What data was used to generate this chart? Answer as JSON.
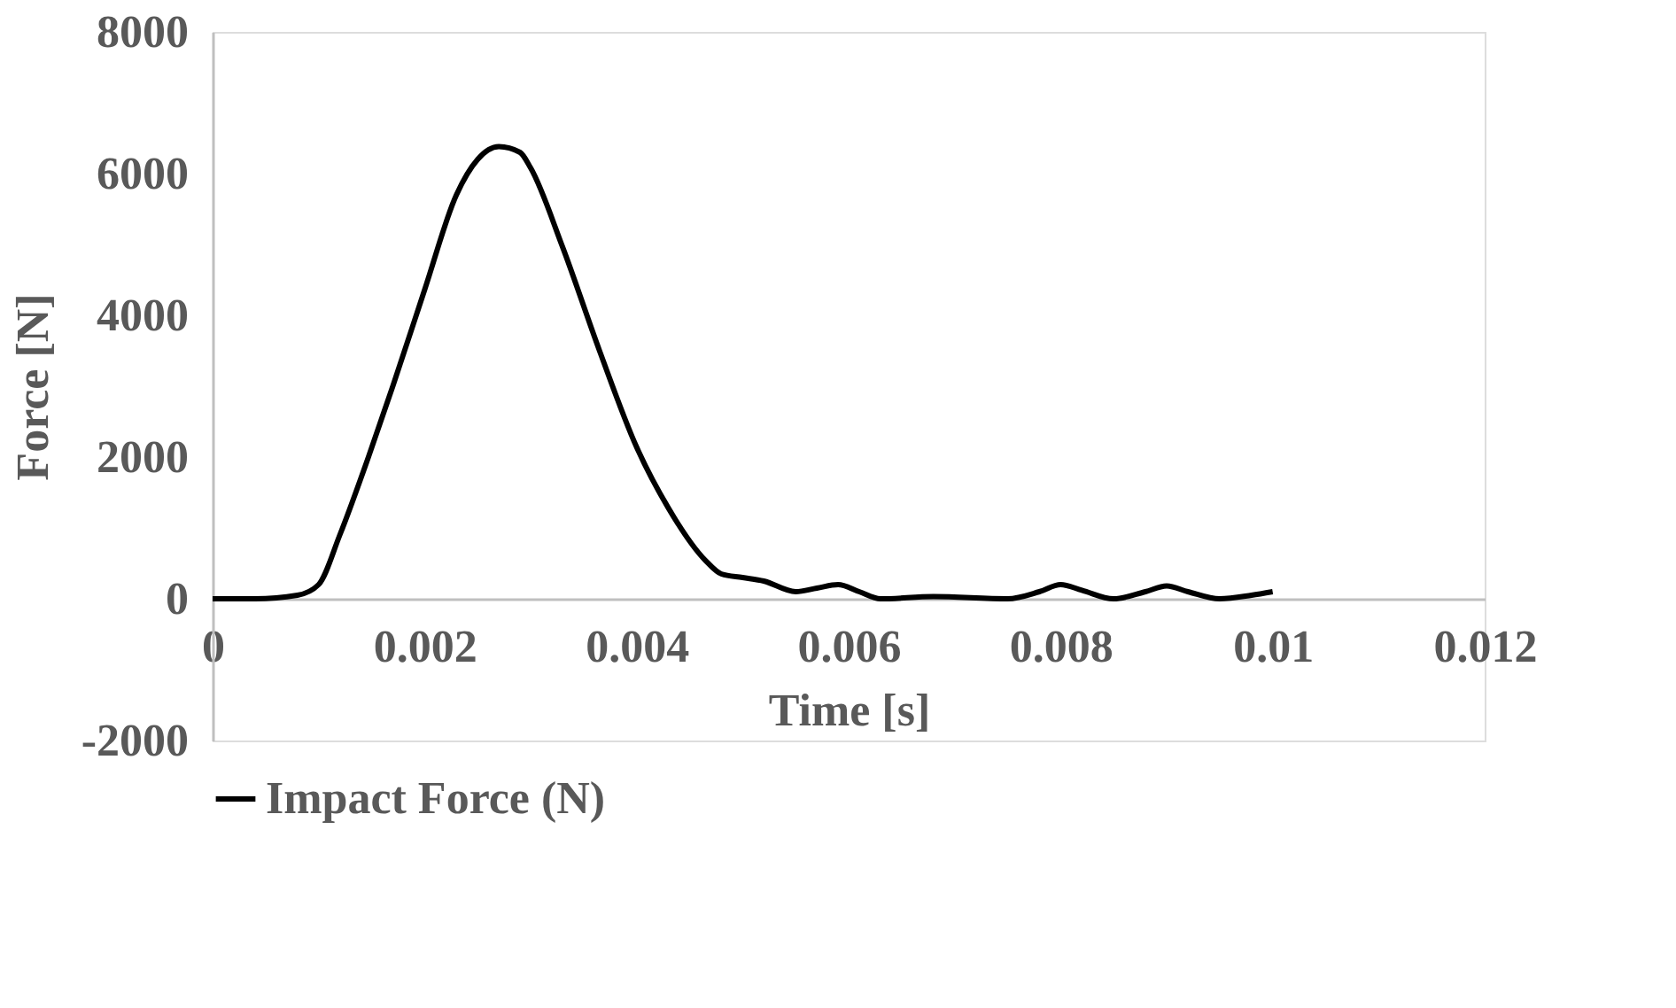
{
  "chart_data": {
    "type": "line",
    "xlabel": "Time  [s]",
    "ylabel": "Force  [N]",
    "xlim": [
      0,
      0.012
    ],
    "ylim": [
      -2000,
      8000
    ],
    "xticks": [
      0,
      0.002,
      0.004,
      0.006,
      0.008,
      0.01,
      0.012
    ],
    "yticks": [
      -2000,
      0,
      2000,
      4000,
      6000,
      8000
    ],
    "grid": false,
    "legend": "bottom",
    "marker": "none",
    "line_style": "solid",
    "series": [
      {
        "name": "Impact Force (N)",
        "color": "#000000",
        "x": [
          0,
          0.0004,
          0.0008,
          0.001,
          0.0012,
          0.00147,
          0.0017,
          0.002,
          0.0023,
          0.0025,
          0.0027,
          0.0029,
          0.003,
          0.0033,
          0.00365,
          0.004,
          0.0043,
          0.00465,
          0.0048,
          0.005,
          0.0052,
          0.0055,
          0.0057,
          0.0059,
          0.0061,
          0.0063,
          0.0068,
          0.0075,
          0.0078,
          0.008,
          0.0082,
          0.0085,
          0.0088,
          0.009,
          0.0092,
          0.0095,
          0.0098,
          0.01
        ],
        "values": [
          0,
          0,
          50,
          200,
          900,
          2000,
          3000,
          4360,
          5700,
          6200,
          6380,
          6300,
          6080,
          4970,
          3500,
          2140,
          1280,
          540,
          350,
          300,
          250,
          100,
          150,
          200,
          100,
          0,
          30,
          0,
          100,
          200,
          120,
          0,
          100,
          180,
          100,
          0,
          50,
          100
        ]
      }
    ]
  }
}
